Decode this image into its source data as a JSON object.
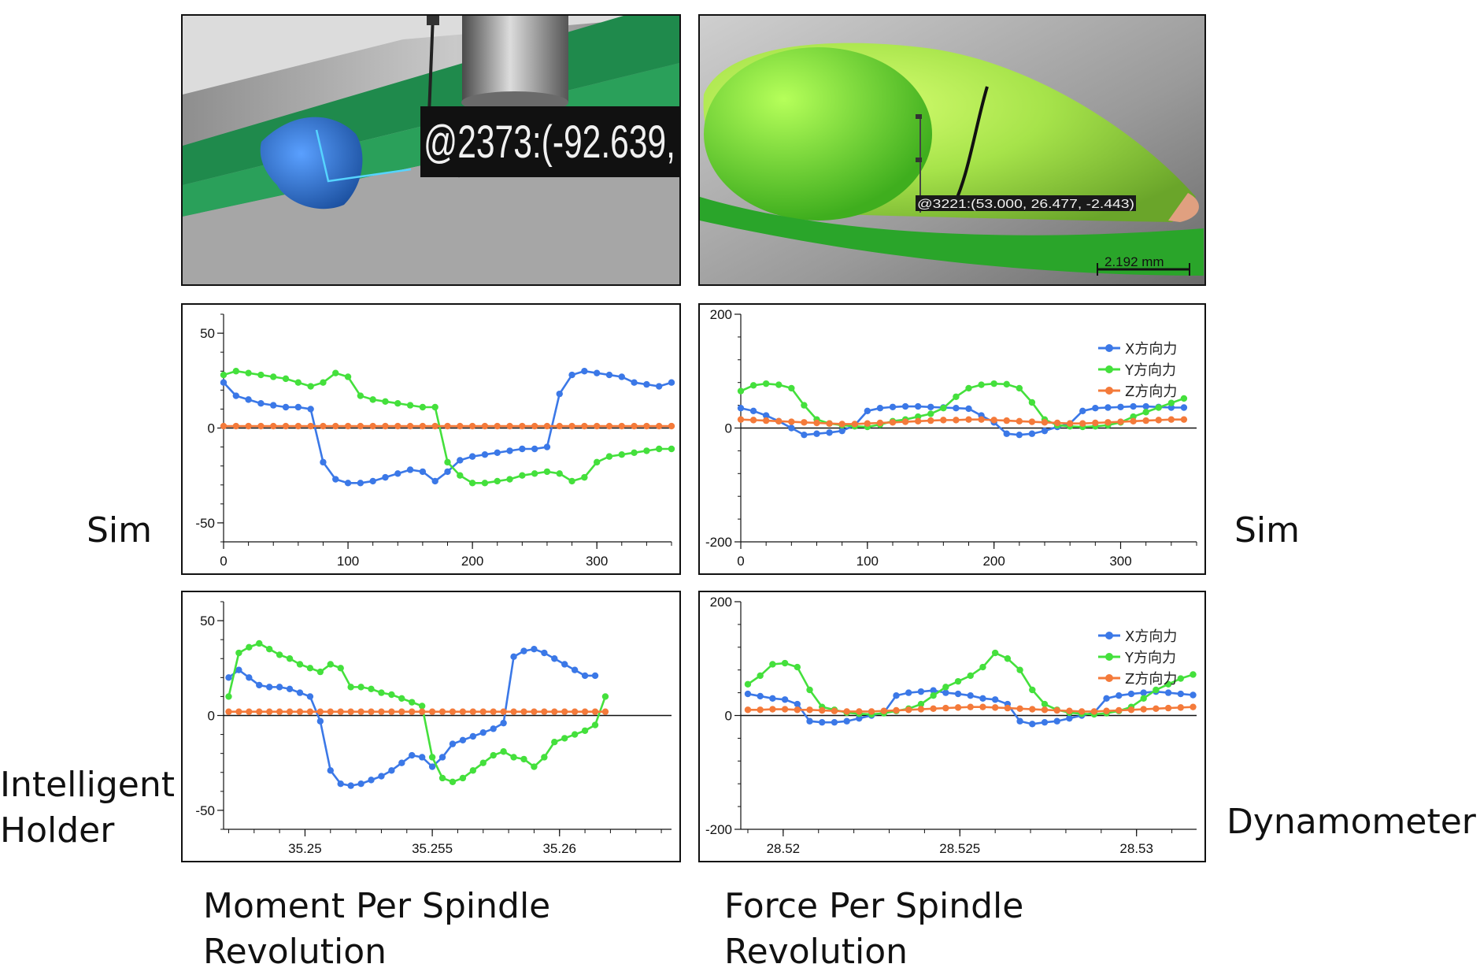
{
  "labels": {
    "left_top": "Sim",
    "left_bottom_line1": "Intelligent",
    "left_bottom_line2": "Holder",
    "right_top": "Sim",
    "right_bottom": "Dynamometer",
    "caption_left_line1": "Moment Per Spindle",
    "caption_left_line2": "Revolution",
    "caption_right_line1": "Force Per Spindle",
    "caption_right_line2": "Revolution"
  },
  "images": {
    "left": {
      "annotation": "@2373:(-92.639,"
    },
    "right": {
      "annotation": "@3221:(53.000,  26.477,  -2.443)",
      "scale_label": "2.192  mm"
    }
  },
  "colors": {
    "blue": "#3b78e7",
    "green": "#44e03c",
    "orange": "#f47a3a",
    "axis": "#111111"
  },
  "chart_data": [
    {
      "id": "moment-sim",
      "type": "line",
      "title": "",
      "xlabel": "",
      "ylabel": "",
      "xlim": [
        0,
        360
      ],
      "ylim": [
        -60,
        60
      ],
      "xticks": [
        {
          "v": 0,
          "label": "0"
        },
        {
          "v": 100,
          "label": "100"
        },
        {
          "v": 200,
          "label": "200"
        },
        {
          "v": 300,
          "label": "300"
        }
      ],
      "yticks": [
        {
          "v": 50,
          "label": "50"
        },
        {
          "v": 0,
          "label": "0"
        },
        {
          "v": -50,
          "label": "-50"
        }
      ],
      "xstep": 10,
      "grid": false,
      "legend": null,
      "series": [
        {
          "color": "#3b78e7",
          "values": [
            24,
            17,
            15,
            13,
            12,
            11,
            11,
            10,
            -18,
            -27,
            -29,
            -29,
            -28,
            -26,
            -24,
            -22,
            -23,
            -28,
            -23,
            -17,
            -15,
            -14,
            -13,
            -12,
            -11,
            -11,
            -10,
            18,
            28,
            30,
            29,
            28,
            27,
            24,
            23,
            22,
            24,
            29
          ]
        },
        {
          "color": "#44e03c",
          "values": [
            28,
            30,
            29,
            28,
            27,
            26,
            24,
            22,
            24,
            29,
            27,
            17,
            15,
            14,
            13,
            12,
            11,
            11,
            -18,
            -25,
            -29,
            -29,
            -28,
            -27,
            -25,
            -24,
            -23,
            -24,
            -28,
            -26,
            -18,
            -15,
            -14,
            -13,
            -12,
            -11,
            -11,
            -11,
            18
          ]
        },
        {
          "color": "#f47a3a",
          "values": [
            1,
            1,
            1,
            1,
            1,
            1,
            1,
            1,
            1,
            1,
            1,
            1,
            1,
            1,
            1,
            1,
            1,
            1,
            1,
            1,
            1,
            1,
            1,
            1,
            1,
            1,
            1,
            1,
            1,
            1,
            1,
            1,
            1,
            1,
            1,
            1,
            1
          ]
        }
      ]
    },
    {
      "id": "force-sim",
      "type": "line",
      "title": "",
      "xlabel": "",
      "ylabel": "",
      "xlim": [
        0,
        360
      ],
      "ylim": [
        -200,
        200
      ],
      "xticks": [
        {
          "v": 0,
          "label": "0"
        },
        {
          "v": 100,
          "label": "100"
        },
        {
          "v": 200,
          "label": "200"
        },
        {
          "v": 300,
          "label": "300"
        }
      ],
      "yticks": [
        {
          "v": 200,
          "label": "200"
        },
        {
          "v": 0,
          "label": "0"
        },
        {
          "v": -200,
          "label": "-200"
        }
      ],
      "xstep": 10,
      "grid": false,
      "legend": "top-right",
      "series": [
        {
          "name": "X方向力",
          "color": "#3b78e7",
          "values": [
            35,
            30,
            22,
            12,
            0,
            -12,
            -10,
            -8,
            -5,
            5,
            30,
            35,
            37,
            38,
            38,
            37,
            36,
            35,
            34,
            22,
            10,
            -10,
            -12,
            -10,
            -5,
            2,
            8,
            30,
            35,
            36,
            37,
            38,
            38,
            37,
            36,
            36
          ]
        },
        {
          "name": "Y方向力",
          "color": "#44e03c",
          "values": [
            65,
            75,
            78,
            76,
            70,
            40,
            15,
            8,
            5,
            3,
            2,
            6,
            12,
            15,
            20,
            25,
            35,
            55,
            70,
            76,
            78,
            77,
            70,
            45,
            15,
            5,
            3,
            2,
            3,
            5,
            10,
            20,
            28,
            36,
            44,
            52
          ]
        },
        {
          "name": "Z方向力",
          "color": "#f47a3a",
          "values": [
            15,
            14,
            13,
            12,
            11,
            10,
            9,
            8,
            7,
            7,
            8,
            9,
            10,
            11,
            12,
            13,
            14,
            14,
            15,
            15,
            14,
            13,
            12,
            11,
            10,
            9,
            8,
            8,
            9,
            10,
            11,
            12,
            13,
            14,
            15,
            15
          ]
        }
      ]
    },
    {
      "id": "moment-holder",
      "type": "line",
      "title": "",
      "xlabel": "",
      "ylabel": "",
      "xlim": [
        35.2468,
        35.2644
      ],
      "ylim": [
        -60,
        60
      ],
      "xticks": [
        {
          "v": 35.25,
          "label": "35.25"
        },
        {
          "v": 35.255,
          "label": "35.255"
        },
        {
          "v": 35.26,
          "label": "35.26"
        }
      ],
      "yticks": [
        {
          "v": 50,
          "label": "50"
        },
        {
          "v": 0,
          "label": "0"
        },
        {
          "v": -50,
          "label": "-50"
        }
      ],
      "x0": 35.247,
      "xstep": 0.0004,
      "grid": false,
      "legend": null,
      "series": [
        {
          "color": "#3b78e7",
          "values": [
            20,
            24,
            20,
            16,
            15,
            15,
            14,
            12,
            10,
            -3,
            -29,
            -36,
            -37,
            -36,
            -34,
            -32,
            -29,
            -25,
            -21,
            -22,
            -27,
            -22,
            -15,
            -13,
            -11,
            -9,
            -7,
            -4,
            31,
            34,
            35,
            33,
            30,
            27,
            24,
            21,
            21
          ]
        },
        {
          "color": "#44e03c",
          "values": [
            10,
            33,
            36,
            38,
            35,
            32,
            30,
            27,
            25,
            23,
            27,
            25,
            15,
            15,
            14,
            12,
            11,
            9,
            7,
            5,
            -22,
            -33,
            -35,
            -33,
            -29,
            -25,
            -21,
            -19,
            -22,
            -23,
            -27,
            -22,
            -14,
            -12,
            -10,
            -8,
            -5,
            10
          ]
        },
        {
          "color": "#f47a3a",
          "values": [
            2,
            2,
            2,
            2,
            2,
            2,
            2,
            2,
            2,
            2,
            2,
            2,
            2,
            2,
            2,
            2,
            2,
            2,
            2,
            2,
            2,
            2,
            2,
            2,
            2,
            2,
            2,
            2,
            2,
            2,
            2,
            2,
            2,
            2,
            2,
            2,
            2,
            2
          ]
        }
      ]
    },
    {
      "id": "force-dynamometer",
      "type": "line",
      "title": "",
      "xlabel": "",
      "ylabel": "",
      "xlim": [
        28.5188,
        28.5317
      ],
      "ylim": [
        -200,
        200
      ],
      "xticks": [
        {
          "v": 28.52,
          "label": "28.52"
        },
        {
          "v": 28.525,
          "label": "28.525"
        },
        {
          "v": 28.53,
          "label": "28.53"
        }
      ],
      "yticks": [
        {
          "v": 200,
          "label": "200"
        },
        {
          "v": 0,
          "label": "0"
        },
        {
          "v": -200,
          "label": "-200"
        }
      ],
      "x0": 28.519,
      "xstep": 0.00035,
      "grid": false,
      "legend": "top-right",
      "series": [
        {
          "name": "X方向力",
          "color": "#3b78e7",
          "values": [
            38,
            34,
            30,
            28,
            20,
            -10,
            -12,
            -12,
            -10,
            -5,
            0,
            5,
            35,
            40,
            42,
            44,
            40,
            38,
            35,
            30,
            28,
            20,
            -10,
            -15,
            -12,
            -10,
            -5,
            0,
            5,
            30,
            35,
            38,
            40,
            42,
            40,
            38,
            36
          ]
        },
        {
          "name": "Y方向力",
          "color": "#44e03c",
          "values": [
            55,
            70,
            90,
            92,
            85,
            45,
            15,
            10,
            5,
            3,
            2,
            4,
            8,
            12,
            20,
            35,
            50,
            60,
            70,
            85,
            110,
            100,
            80,
            45,
            20,
            10,
            5,
            3,
            2,
            4,
            8,
            15,
            30,
            45,
            55,
            65,
            72
          ]
        },
        {
          "name": "Z方向力",
          "color": "#f47a3a",
          "values": [
            10,
            10,
            11,
            11,
            10,
            10,
            9,
            8,
            7,
            7,
            7,
            8,
            9,
            10,
            11,
            12,
            13,
            14,
            15,
            15,
            14,
            13,
            12,
            11,
            10,
            9,
            8,
            7,
            7,
            8,
            9,
            10,
            11,
            12,
            13,
            14,
            15
          ]
        }
      ]
    }
  ]
}
